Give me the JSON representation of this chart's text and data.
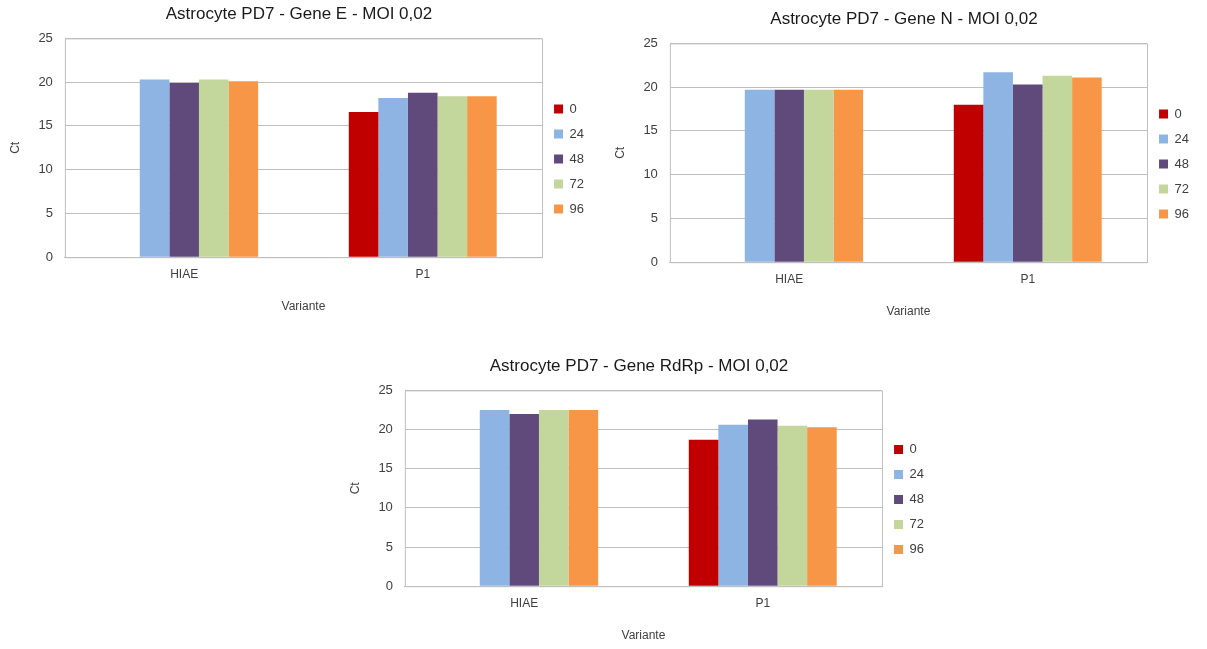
{
  "chart_data": [
    {
      "type": "bar",
      "title": "Astrocyte PD7 - Gene E - MOI 0,02",
      "xlabel": "Variante",
      "ylabel": "Ct",
      "categories": [
        "HIAE",
        "P1"
      ],
      "series": [
        {
          "name": "0",
          "color": "#c00000",
          "values": [
            null,
            16.6
          ]
        },
        {
          "name": "24",
          "color": "#8eb4e3",
          "values": [
            20.3,
            18.2
          ]
        },
        {
          "name": "48",
          "color": "#604a7b",
          "values": [
            19.9,
            18.8
          ]
        },
        {
          "name": "72",
          "color": "#c3d69b",
          "values": [
            20.3,
            18.4
          ]
        },
        {
          "name": "96",
          "color": "#f79646",
          "values": [
            20.1,
            18.4
          ]
        }
      ],
      "ylim": [
        0,
        25
      ],
      "yticks": [
        0,
        5,
        10,
        15,
        20,
        25
      ],
      "grid": "y",
      "legend": "right"
    },
    {
      "type": "bar",
      "title": "Astrocyte PD7 - Gene N - MOI 0,02",
      "xlabel": "Variante",
      "ylabel": "Ct",
      "categories": [
        "HIAE",
        "P1"
      ],
      "series": [
        {
          "name": "0",
          "color": "#c00000",
          "values": [
            null,
            18.0
          ]
        },
        {
          "name": "24",
          "color": "#8eb4e3",
          "values": [
            19.7,
            21.7
          ]
        },
        {
          "name": "48",
          "color": "#604a7b",
          "values": [
            19.7,
            20.3
          ]
        },
        {
          "name": "72",
          "color": "#c3d69b",
          "values": [
            19.7,
            21.3
          ]
        },
        {
          "name": "96",
          "color": "#f79646",
          "values": [
            19.7,
            21.1
          ]
        }
      ],
      "ylim": [
        0,
        25
      ],
      "yticks": [
        0,
        5,
        10,
        15,
        20,
        25
      ],
      "grid": "y",
      "legend": "right"
    },
    {
      "type": "bar",
      "title": "Astrocyte PD7 - Gene RdRp - MOI 0,02",
      "xlabel": "Variante",
      "ylabel": "Ct",
      "categories": [
        "HIAE",
        "P1"
      ],
      "series": [
        {
          "name": "0",
          "color": "#c00000",
          "values": [
            null,
            18.7
          ]
        },
        {
          "name": "24",
          "color": "#8eb4e3",
          "values": [
            22.5,
            20.6
          ]
        },
        {
          "name": "48",
          "color": "#604a7b",
          "values": [
            22.0,
            21.3
          ]
        },
        {
          "name": "72",
          "color": "#c3d69b",
          "values": [
            22.5,
            20.5
          ]
        },
        {
          "name": "96",
          "color": "#f79646",
          "values": [
            22.5,
            20.3
          ]
        }
      ],
      "ylim": [
        0,
        25
      ],
      "yticks": [
        0,
        5,
        10,
        15,
        20,
        25
      ],
      "grid": "y",
      "legend": "right"
    }
  ]
}
